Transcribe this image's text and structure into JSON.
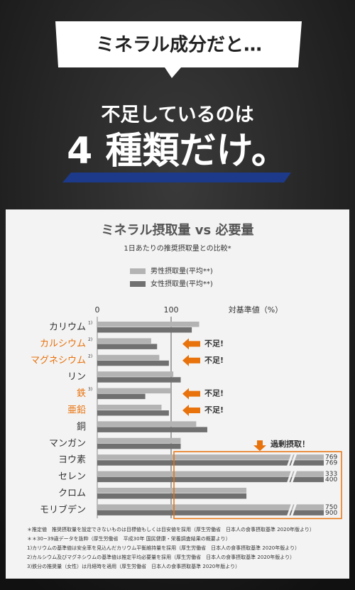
{
  "header": {
    "box_text": "ミネラル成分だと…",
    "line1": "不足しているのは",
    "line2": "4 種類だけ。"
  },
  "chart_data": {
    "type": "hbar",
    "title": "ミネラル摂取量 vs 必要量",
    "subtitle": "1日あたりの推奨摂取量との比較*",
    "x_label": "対基準値（%）",
    "categories": [
      "カリウム",
      "カルシウム",
      "マグネシウム",
      "リン",
      "鉄",
      "亜鉛",
      "銅",
      "マンガン",
      "ヨウ素",
      "セレン",
      "クロム",
      "モリブデン"
    ],
    "category_notes": [
      "1)",
      "2)",
      "2)",
      null,
      "3)",
      null,
      null,
      null,
      null,
      null,
      null,
      null
    ],
    "highlight": [
      false,
      true,
      true,
      false,
      true,
      true,
      false,
      false,
      false,
      false,
      false,
      false
    ],
    "series": [
      {
        "name": "男性摂取量(平均**)",
        "color": "#b3b3b3",
        "values": [
          138,
          73,
          84,
          103,
          99,
          87,
          134,
          113,
          769,
          333,
          202,
          750
        ],
        "value_labels": [
          null,
          null,
          null,
          null,
          null,
          null,
          null,
          null,
          "769",
          "333",
          null,
          "750"
        ]
      },
      {
        "name": "女性摂取量(平均**)",
        "color": "#707070",
        "values": [
          128,
          81,
          97,
          113,
          65,
          97,
          149,
          113,
          769,
          400,
          202,
          900
        ],
        "value_labels": [
          null,
          null,
          null,
          null,
          null,
          null,
          null,
          null,
          "769",
          "400",
          null,
          "900"
        ]
      }
    ],
    "xlim": [
      0,
      300
    ],
    "xticks": [
      0,
      100
    ],
    "shortage_label": "不足!",
    "excess_label": "過剰摂取！",
    "footnotes": [
      "＊推定値　推奨摂取量を設定できないものは目標値もしくは目安値を採用（厚生労働省　日本人の食事摂取基準 2020年版より）",
      "＊＊30~39歳データを抜粋（厚生労働省　平成30年 国民健康・栄養調査結果の概要より）",
      "1)カリウムの基準値は安全率を見込んだカリウム平衡維持量を採用（厚生労働省　日本人の食事摂取基準 2020年版より）",
      "2)カルシウム及びマグネシウムの基準値は推定平均必要量を採用（厚生労働省　日本人の食事摂取基準 2020年版より）",
      "3)鉄分の推奨量（女性）は月経時を適用（厚生労働省　日本人の食事摂取基準 2020年版より）"
    ]
  }
}
